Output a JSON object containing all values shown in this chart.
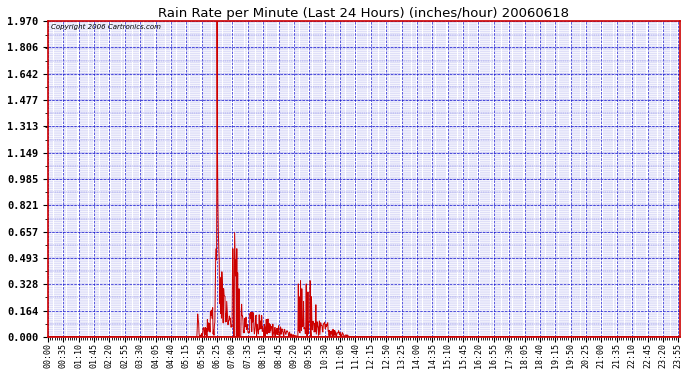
{
  "title": "Rain Rate per Minute (Last 24 Hours) (inches/hour) 20060618",
  "copyright_text": "Copyright 2006 Cartronics.com",
  "background_color": "#ffffff",
  "plot_bg_color": "#ffffff",
  "line_color": "#cc0000",
  "grid_color": "#0000cc",
  "axis_color": "#cc0000",
  "text_color": "#000000",
  "title_color": "#000000",
  "ylim": [
    0.0,
    1.97
  ],
  "yticks": [
    0.0,
    0.164,
    0.328,
    0.493,
    0.657,
    0.821,
    0.985,
    1.149,
    1.313,
    1.477,
    1.642,
    1.806,
    1.97
  ],
  "total_minutes": 1440,
  "xtick_interval": 35,
  "figwidth": 6.9,
  "figheight": 3.75,
  "dpi": 100
}
